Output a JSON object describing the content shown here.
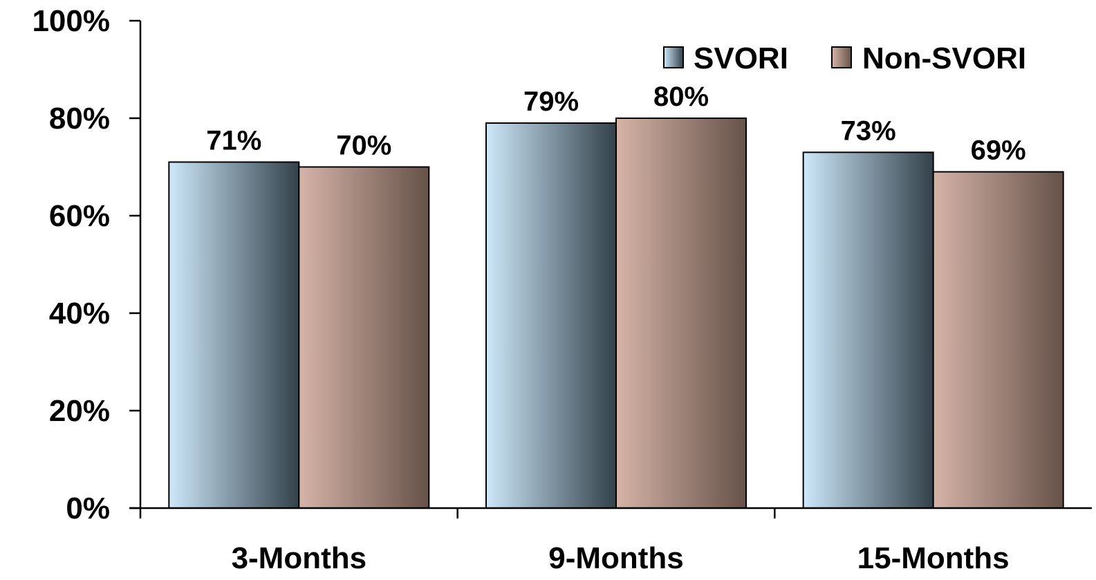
{
  "chart_data": {
    "type": "bar",
    "categories": [
      "3-Months",
      "9-Months",
      "15-Months"
    ],
    "series": [
      {
        "name": "SVORI",
        "values": [
          71,
          79,
          73
        ],
        "labels": [
          "71%",
          "79%",
          "73%"
        ],
        "color_light": "#cde8fa",
        "color_dark": "#33414a"
      },
      {
        "name": "Non-SVORI",
        "values": [
          70,
          80,
          69
        ],
        "labels": [
          "70%",
          "80%",
          "69%"
        ],
        "color_light": "#d6b4a8",
        "color_dark": "#665249"
      }
    ],
    "y_ticks": [
      {
        "value": 0,
        "label": "0%"
      },
      {
        "value": 20,
        "label": "20%"
      },
      {
        "value": 40,
        "label": "40%"
      },
      {
        "value": 60,
        "label": "60%"
      },
      {
        "value": 80,
        "label": "80%"
      },
      {
        "value": 100,
        "label": "100%"
      }
    ],
    "ylim": [
      0,
      100
    ],
    "grid": false,
    "legend_position": "top-right"
  }
}
